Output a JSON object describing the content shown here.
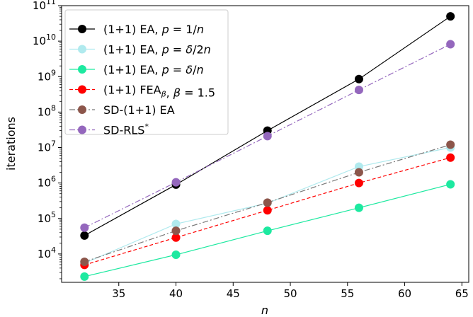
{
  "chart_data": {
    "type": "line",
    "title": "",
    "xlabel": "n",
    "ylabel": "iterations",
    "xlim": [
      30,
      65.6
    ],
    "ylim_exp": [
      3.2,
      11
    ],
    "yscale": "log",
    "grid": false,
    "legend_position": "top-left",
    "x": [
      32,
      40,
      48,
      56,
      64
    ],
    "x_ticks": [
      35,
      40,
      45,
      50,
      55,
      60,
      65
    ],
    "y_ticks": [
      {
        "base": "10",
        "exp": "4",
        "value": 10000
      },
      {
        "base": "10",
        "exp": "5",
        "value": 100000
      },
      {
        "base": "10",
        "exp": "6",
        "value": 1000000
      },
      {
        "base": "10",
        "exp": "7",
        "value": 10000000
      },
      {
        "base": "10",
        "exp": "8",
        "value": 100000000
      },
      {
        "base": "10",
        "exp": "9",
        "value": 1000000000
      },
      {
        "base": "10",
        "exp": "10",
        "value": 10000000000
      },
      {
        "base": "10",
        "exp": "11",
        "value": 100000000000
      }
    ],
    "series": [
      {
        "name": "(1+1) EA, p = 1/n",
        "legend": [
          {
            "t": "(1+1) EA, "
          },
          {
            "t": "p",
            "i": true
          },
          {
            "t": " = 1/"
          },
          {
            "t": "n",
            "i": true
          }
        ],
        "marker_color": "#000000",
        "line_color": "#000000",
        "dash": "",
        "values": [
          33000,
          900000,
          30000000,
          850000000,
          50000000000
        ]
      },
      {
        "name": "(1+1) EA, p = δ/2n",
        "legend": [
          {
            "t": "(1+1) EA, "
          },
          {
            "t": "p",
            "i": true
          },
          {
            "t": " = "
          },
          {
            "t": "δ",
            "i": true
          },
          {
            "t": "/2"
          },
          {
            "t": "n",
            "i": true
          }
        ],
        "marker_color": "#b0eaee",
        "line_color": "#b0eaee",
        "dash": "",
        "values": [
          5500,
          70000,
          270000,
          2900000,
          10000000
        ]
      },
      {
        "name": "(1+1) EA, p = δ/n",
        "legend": [
          {
            "t": "(1+1) EA, "
          },
          {
            "t": "p",
            "i": true
          },
          {
            "t": " = "
          },
          {
            "t": "δ",
            "i": true
          },
          {
            "t": "/"
          },
          {
            "t": "n",
            "i": true
          }
        ],
        "marker_color": "#1de9a0",
        "line_color": "#1de9a0",
        "dash": "",
        "values": [
          2300,
          9500,
          45000,
          200000,
          920000
        ]
      },
      {
        "name": "(1+1) FEAβ, β = 1.5",
        "legend": [
          {
            "t": "(1+1) FEA"
          },
          {
            "t": "β",
            "i": true,
            "sub": true
          },
          {
            "t": ", "
          },
          {
            "t": "β",
            "i": true
          },
          {
            "t": " = 1.5"
          }
        ],
        "marker_color": "#ff0000",
        "line_color": "#ff0000",
        "dash": "5,3",
        "values": [
          4900,
          29000,
          170000,
          1000000,
          5200000
        ]
      },
      {
        "name": "SD-(1+1) EA",
        "legend": [
          {
            "t": "SD-(1+1) EA"
          }
        ],
        "marker_color": "#8c564b",
        "line_color": "#7a7a7a",
        "dash": "8,3,2,3",
        "values": [
          6000,
          45000,
          280000,
          2000000,
          12000000
        ]
      },
      {
        "name": "SD-RLS*",
        "legend": [
          {
            "t": "SD-RLS"
          },
          {
            "t": "*",
            "sup": true
          }
        ],
        "marker_color": "#9467bd",
        "line_color": "#9467bd",
        "dash": "8,3,2,3",
        "values": [
          55000,
          1050000,
          21000000,
          420000000,
          8200000000
        ]
      }
    ]
  }
}
